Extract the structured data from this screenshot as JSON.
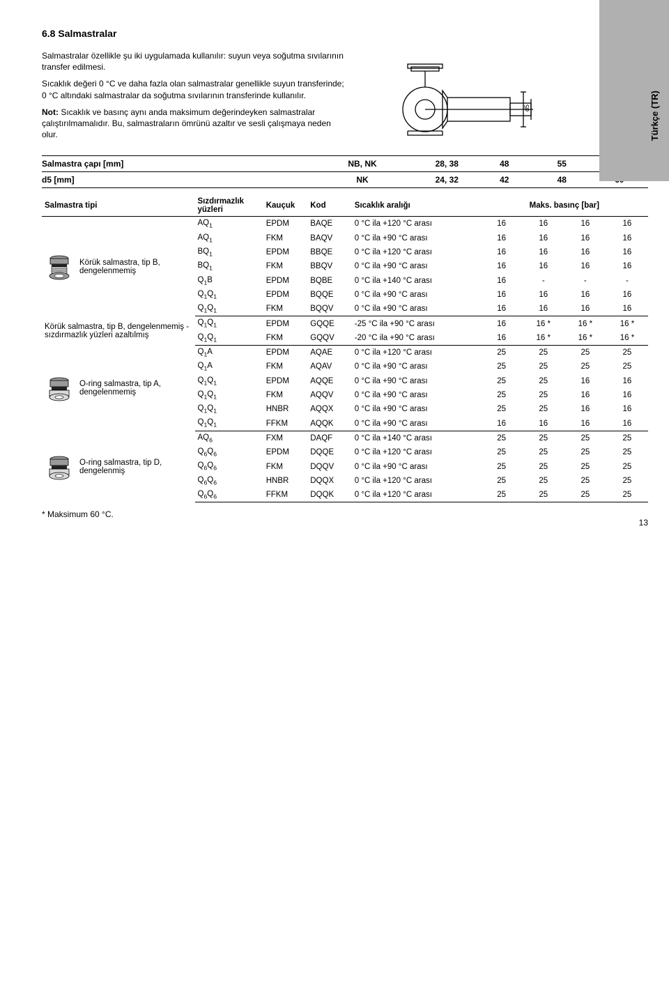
{
  "side_tab": "Türkçe (TR)",
  "heading": "6.8 Salmastralar",
  "intro": {
    "p1": "Salmastralar özellikle şu iki uygulamada kullanılır: suyun veya soğutma sıvılarının transfer edilmesi.",
    "p2": "Sıcaklık değeri 0 °C ve daha fazla olan salmastralar genellikle suyun transferinde; 0 °C altındaki salmastralar da soğutma sıvılarının transferinde kullanılır.",
    "note_label": "Not:",
    "note_text": " Sıcaklık ve basınç aynı anda maksimum değerindeyken salmastralar çalıştırılmamalıdır. Bu, salmastraların ömrünü azaltır ve sesli çalışmaya neden olur."
  },
  "header_rows": [
    {
      "label": "Salmastra çapı [mm]",
      "mid": "NB, NK",
      "cols": [
        "28, 38",
        "48",
        "55",
        "60"
      ]
    },
    {
      "label": "d5 [mm]",
      "mid": "NK",
      "cols": [
        "24, 32",
        "42",
        "48",
        "60"
      ]
    }
  ],
  "main_header": {
    "type": "Salmastra tipi",
    "faces": "Sızdırmazlık yüzleri",
    "rubber": "Kauçuk",
    "code": "Kod",
    "temp": "Sıcaklık aralığı",
    "press": "Maks. basınç [bar]"
  },
  "groups": [
    {
      "label": "Körük salmastra, tip B, dengelenmemiş",
      "icon": "bellows",
      "rows": [
        {
          "faces_html": "AQ<sub>1</sub>",
          "rubber": "EPDM",
          "code": "BAQE",
          "temp": "0 °C ila +120 °C arası",
          "v": [
            "16",
            "16",
            "16",
            "16"
          ]
        },
        {
          "faces_html": "AQ<sub>1</sub>",
          "rubber": "FKM",
          "code": "BAQV",
          "temp": "0 °C ila +90 °C arası",
          "v": [
            "16",
            "16",
            "16",
            "16"
          ]
        },
        {
          "faces_html": "BQ<sub>1</sub>",
          "rubber": "EPDM",
          "code": "BBQE",
          "temp": "0 °C ila +120 °C arası",
          "v": [
            "16",
            "16",
            "16",
            "16"
          ]
        },
        {
          "faces_html": "BQ<sub>1</sub>",
          "rubber": "FKM",
          "code": "BBQV",
          "temp": "0 °C ila +90 °C arası",
          "v": [
            "16",
            "16",
            "16",
            "16"
          ]
        },
        {
          "faces_html": "Q<sub>1</sub>B",
          "rubber": "EPDM",
          "code": "BQBE",
          "temp": "0 °C ila +140 °C arası",
          "v": [
            "16",
            "-",
            "-",
            "-"
          ]
        },
        {
          "faces_html": "Q<sub>1</sub>Q<sub>1</sub>",
          "rubber": "EPDM",
          "code": "BQQE",
          "temp": "0 °C ila +90 °C arası",
          "v": [
            "16",
            "16",
            "16",
            "16"
          ]
        },
        {
          "faces_html": "Q<sub>1</sub>Q<sub>1</sub>",
          "rubber": "FKM",
          "code": "BQQV",
          "temp": "0 °C ila +90 °C arası",
          "v": [
            "16",
            "16",
            "16",
            "16"
          ]
        }
      ]
    },
    {
      "label": "Körük salmastra, tip B, dengelenmemiş - sızdırmazlık yüzleri azaltılmış",
      "icon": "",
      "rows": [
        {
          "faces_html": "Q<sub>1</sub>Q<sub>1</sub>",
          "rubber": "EPDM",
          "code": "GQQE",
          "temp": "-25 °C ila +90 °C arası",
          "v": [
            "16",
            "16 *",
            "16 *",
            "16 *"
          ]
        },
        {
          "faces_html": "Q<sub>1</sub>Q<sub>1</sub>",
          "rubber": "FKM",
          "code": "GQQV",
          "temp": "-20 °C ila +90 °C arası",
          "v": [
            "16",
            "16 *",
            "16 *",
            "16 *"
          ]
        }
      ]
    },
    {
      "label": "O-ring salmastra, tip A, dengelenmemiş",
      "icon": "oring",
      "rows": [
        {
          "faces_html": "Q<sub>1</sub>A",
          "rubber": "EPDM",
          "code": "AQAE",
          "temp": "0 °C ila +120 °C arası",
          "v": [
            "25",
            "25",
            "25",
            "25"
          ]
        },
        {
          "faces_html": "Q<sub>1</sub>A",
          "rubber": "FKM",
          "code": "AQAV",
          "temp": "0 °C ila +90 °C arası",
          "v": [
            "25",
            "25",
            "25",
            "25"
          ]
        },
        {
          "faces_html": "Q<sub>1</sub>Q<sub>1</sub>",
          "rubber": "EPDM",
          "code": "AQQE",
          "temp": "0 °C ila +90 °C arası",
          "v": [
            "25",
            "25",
            "16",
            "16"
          ]
        },
        {
          "faces_html": "Q<sub>1</sub>Q<sub>1</sub>",
          "rubber": "FKM",
          "code": "AQQV",
          "temp": "0 °C ila +90 °C arası",
          "v": [
            "25",
            "25",
            "16",
            "16"
          ]
        },
        {
          "faces_html": "Q<sub>1</sub>Q<sub>1</sub>",
          "rubber": "HNBR",
          "code": "AQQX",
          "temp": "0 °C ila +90 °C arası",
          "v": [
            "25",
            "25",
            "16",
            "16"
          ]
        },
        {
          "faces_html": "Q<sub>1</sub>Q<sub>1</sub>",
          "rubber": "FFKM",
          "code": "AQQK",
          "temp": "0 °C ila +90 °C arası",
          "v": [
            "16",
            "16",
            "16",
            "16"
          ]
        }
      ]
    },
    {
      "label": "O-ring salmastra, tip D, dengelenmiş",
      "icon": "oring",
      "rows": [
        {
          "faces_html": "AQ<sub>6</sub>",
          "rubber": "FXM",
          "code": "DAQF",
          "temp": "0 °C ila +140 °C arası",
          "v": [
            "25",
            "25",
            "25",
            "25"
          ]
        },
        {
          "faces_html": "Q<sub>6</sub>Q<sub>6</sub>",
          "rubber": "EPDM",
          "code": "DQQE",
          "temp": "0 °C ila +120 °C arası",
          "v": [
            "25",
            "25",
            "25",
            "25"
          ]
        },
        {
          "faces_html": "Q<sub>6</sub>Q<sub>6</sub>",
          "rubber": "FKM",
          "code": "DQQV",
          "temp": "0 °C ila +90 °C arası",
          "v": [
            "25",
            "25",
            "25",
            "25"
          ]
        },
        {
          "faces_html": "Q<sub>6</sub>Q<sub>6</sub>",
          "rubber": "HNBR",
          "code": "DQQX",
          "temp": "0 °C ila +120 °C arası",
          "v": [
            "25",
            "25",
            "25",
            "25"
          ]
        },
        {
          "faces_html": "Q<sub>6</sub>Q<sub>6</sub>",
          "rubber": "FFKM",
          "code": "DQQK",
          "temp": "0 °C ila +120 °C arası",
          "v": [
            "25",
            "25",
            "25",
            "25"
          ]
        }
      ]
    }
  ],
  "footnote": "*  Maksimum 60 °C.",
  "page_number": "13",
  "svg": {
    "d5_label": "d5",
    "colors": {
      "stroke": "#000000",
      "fill_metal_light": "#d9d9d9",
      "fill_metal_dark": "#9a9a9a",
      "fill_black": "#222222"
    }
  }
}
